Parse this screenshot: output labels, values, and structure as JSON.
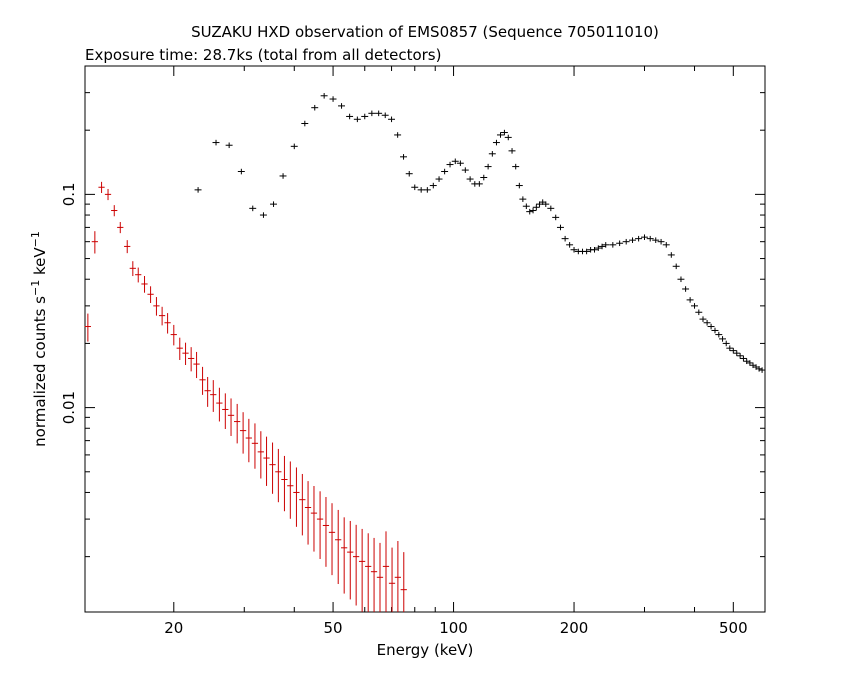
{
  "chart_data": {
    "type": "scatter",
    "title": "SUZAKU HXD observation of EMS0857 (Sequence 705011010)",
    "subtitle": "Exposure time: 28.7ks (total from all detectors)",
    "xlabel": "Energy (keV)",
    "ylabel_main": "normalized counts s",
    "ylabel_exp1": "−1",
    "ylabel_mid": " keV",
    "ylabel_exp2": "−1",
    "xscale": "log",
    "yscale": "log",
    "xlim": [
      12,
      600
    ],
    "ylim": [
      0.0011,
      0.4
    ],
    "x_ticks": [
      20,
      50,
      100,
      200,
      500
    ],
    "x_tick_labels": [
      "20",
      "50",
      "100",
      "200",
      "500"
    ],
    "y_ticks": [
      0.01,
      0.1
    ],
    "y_tick_labels": [
      "0.01",
      "0.1"
    ],
    "grid": false,
    "series": [
      {
        "color": "#cc0000",
        "x": [
          12.2,
          12.7,
          13.2,
          13.7,
          14.2,
          14.7,
          15.3,
          15.8,
          16.3,
          16.9,
          17.5,
          18.1,
          18.7,
          19.3,
          20.0,
          20.7,
          21.4,
          22.1,
          22.8,
          23.6,
          24.3,
          25.1,
          26.0,
          26.9,
          27.8,
          28.8,
          29.8,
          30.8,
          31.9,
          33.0,
          34.1,
          35.3,
          36.5,
          37.8,
          39.1,
          40.5,
          41.9,
          43.3,
          44.8,
          46.4,
          48.0,
          49.7,
          51.5,
          53.3,
          55.2,
          57.1,
          59.1,
          61.2,
          63.3,
          65.5,
          67.8,
          70.2,
          72.6,
          75.1
        ],
        "y": [
          0.024,
          0.06,
          0.108,
          0.1,
          0.084,
          0.07,
          0.057,
          0.045,
          0.042,
          0.038,
          0.034,
          0.03,
          0.027,
          0.025,
          0.022,
          0.019,
          0.018,
          0.017,
          0.016,
          0.0135,
          0.012,
          0.0115,
          0.0105,
          0.0098,
          0.0092,
          0.0086,
          0.0078,
          0.0072,
          0.0068,
          0.0062,
          0.0058,
          0.0054,
          0.005,
          0.0046,
          0.0043,
          0.004,
          0.0037,
          0.0034,
          0.0032,
          0.003,
          0.0028,
          0.0026,
          0.0024,
          0.0022,
          0.0021,
          0.002,
          0.0019,
          0.0018,
          0.0017,
          0.0016,
          0.0018,
          0.0015,
          0.0016,
          0.0014
        ],
        "xerr_frac": 0.018,
        "yerr_frac": [
          0.15,
          0.12,
          0.06,
          0.06,
          0.06,
          0.06,
          0.07,
          0.08,
          0.08,
          0.09,
          0.09,
          0.1,
          0.1,
          0.11,
          0.11,
          0.12,
          0.12,
          0.13,
          0.14,
          0.15,
          0.16,
          0.17,
          0.18,
          0.19,
          0.2,
          0.21,
          0.22,
          0.23,
          0.24,
          0.25,
          0.26,
          0.27,
          0.28,
          0.29,
          0.3,
          0.31,
          0.32,
          0.33,
          0.34,
          0.35,
          0.36,
          0.37,
          0.38,
          0.39,
          0.4,
          0.41,
          0.42,
          0.43,
          0.44,
          0.45,
          0.46,
          0.47,
          0.48,
          0.5
        ]
      },
      {
        "color": "#000000",
        "x": [
          23.0,
          25.5,
          27.5,
          29.5,
          31.5,
          33.5,
          35.5,
          37.5,
          40.0,
          42.5,
          45.0,
          47.5,
          50.0,
          52.5,
          55.0,
          57.5,
          60.0,
          62.5,
          65.0,
          67.5,
          70.0,
          72.5,
          75.0,
          77.5,
          80.0,
          83.0,
          86.0,
          89.0,
          92.0,
          95.0,
          98.0,
          101,
          104,
          107,
          110,
          113,
          116,
          119,
          122,
          125,
          128,
          131,
          134,
          137,
          140,
          143,
          146,
          149,
          152,
          155,
          158,
          161,
          164,
          167,
          170,
          175,
          180,
          185,
          190,
          195,
          200,
          205,
          210,
          215,
          220,
          225,
          230,
          235,
          240,
          250,
          260,
          270,
          280,
          290,
          300,
          310,
          320,
          330,
          340,
          350,
          360,
          370,
          380,
          390,
          400,
          410,
          420,
          430,
          440,
          450,
          460,
          470,
          480,
          490,
          500,
          510,
          520,
          530,
          540,
          550,
          560,
          570,
          580,
          590
        ],
        "y": [
          0.105,
          0.175,
          0.17,
          0.128,
          0.086,
          0.08,
          0.09,
          0.122,
          0.168,
          0.215,
          0.255,
          0.29,
          0.28,
          0.26,
          0.232,
          0.225,
          0.232,
          0.24,
          0.24,
          0.235,
          0.225,
          0.19,
          0.15,
          0.125,
          0.108,
          0.105,
          0.105,
          0.11,
          0.118,
          0.128,
          0.138,
          0.143,
          0.14,
          0.13,
          0.118,
          0.112,
          0.112,
          0.12,
          0.135,
          0.155,
          0.175,
          0.19,
          0.195,
          0.185,
          0.16,
          0.135,
          0.11,
          0.095,
          0.088,
          0.083,
          0.084,
          0.087,
          0.09,
          0.092,
          0.09,
          0.086,
          0.078,
          0.07,
          0.062,
          0.058,
          0.055,
          0.054,
          0.054,
          0.054,
          0.055,
          0.055,
          0.056,
          0.057,
          0.058,
          0.058,
          0.059,
          0.06,
          0.061,
          0.062,
          0.063,
          0.062,
          0.061,
          0.06,
          0.058,
          0.052,
          0.046,
          0.04,
          0.036,
          0.032,
          0.03,
          0.028,
          0.026,
          0.025,
          0.024,
          0.023,
          0.022,
          0.021,
          0.02,
          0.019,
          0.0185,
          0.018,
          0.0175,
          0.017,
          0.0165,
          0.0162,
          0.0158,
          0.0155,
          0.0152,
          0.015
        ],
        "xerr_frac": 0.02,
        "yerr_frac": 0.03
      }
    ]
  }
}
